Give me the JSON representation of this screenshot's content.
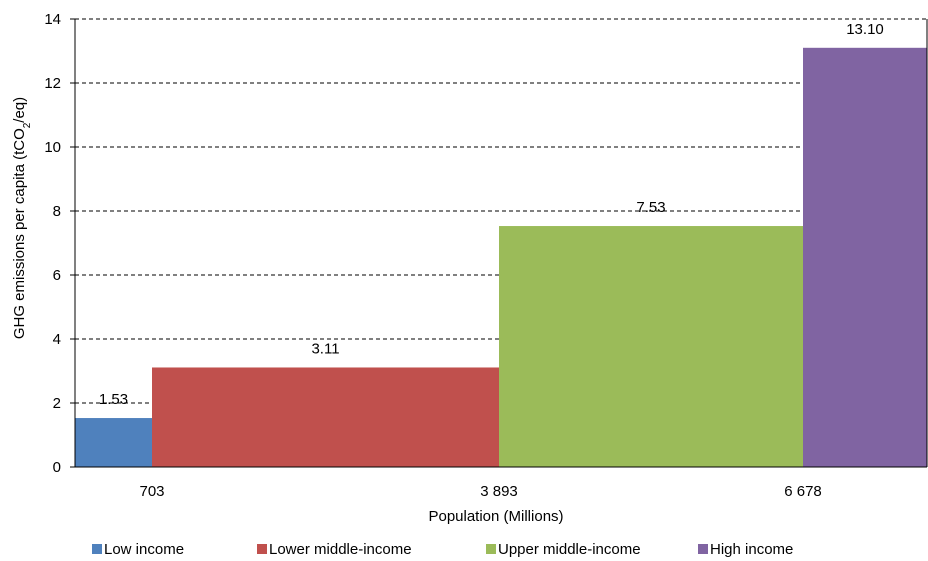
{
  "chart_data": {
    "type": "bar",
    "variant": "variable-width",
    "title": "",
    "xlabel": "Population (Millions)",
    "ylabel": "GHG emissions per capita (tCO2/eq)",
    "ylabel_parts": [
      "GHG emissions per capita (tCO",
      "2",
      "/eq)"
    ],
    "ylim": [
      0,
      14
    ],
    "yticks": [
      "0",
      "2",
      "4",
      "6",
      "8",
      "10",
      "12",
      "14"
    ],
    "grid": true,
    "legend_position": "bottom",
    "x_tick_labels": [
      "703",
      "3 893",
      "6 678"
    ],
    "categories": [
      "Low income",
      "Lower middle-income",
      "Upper middle-income",
      "High income"
    ],
    "values": [
      1.53,
      3.11,
      7.53,
      13.1
    ],
    "data_labels": [
      "1.53",
      "3.11",
      "7.53",
      "13.10"
    ],
    "cumulative_population_millions": [
      703,
      3893,
      6678,
      7850
    ],
    "colors": [
      "#4F81BD",
      "#C0504D",
      "#9BBB59",
      "#8064A2"
    ]
  }
}
